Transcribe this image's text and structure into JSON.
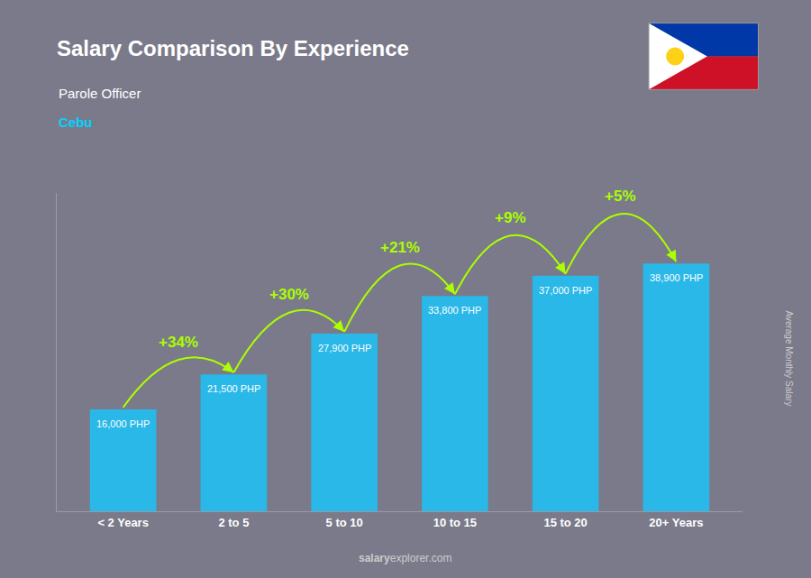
{
  "chart_data": {
    "type": "bar",
    "title": "Salary Comparison By Experience",
    "subtitle": "Parole Officer",
    "location": "Cebu",
    "ylabel": "Average Monthly Salary",
    "watermark": [
      "salary",
      "explorer.com"
    ],
    "categories": [
      "< 2 Years",
      "2 to 5",
      "5 to 10",
      "10 to 15",
      "15 to 20",
      "20+ Years"
    ],
    "values": [
      16000,
      21500,
      27900,
      33800,
      37000,
      38900
    ],
    "value_labels": [
      "16,000 PHP",
      "21,500 PHP",
      "27,900 PHP",
      "33,800 PHP",
      "37,000 PHP",
      "38,900 PHP"
    ],
    "data_labels": true,
    "annotations": [
      "+34%",
      "+30%",
      "+21%",
      "+9%",
      "+5%"
    ],
    "color": "#29b8e8",
    "ylim": [
      0,
      50000
    ],
    "grid": false,
    "tick_labels": "x"
  }
}
